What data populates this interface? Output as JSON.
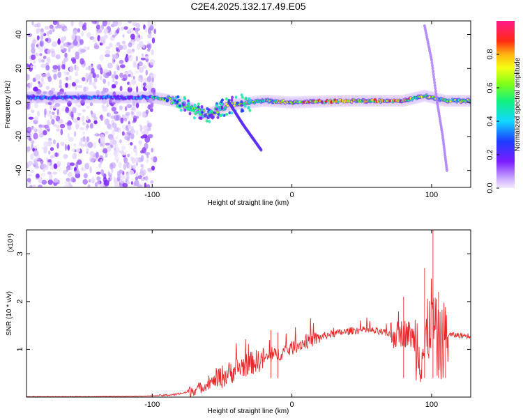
{
  "title": "C2E4.2025.132.17.49.E05",
  "colors": {
    "snr_line": "#e8292b",
    "ridge_low": "#7a1cff",
    "ridge_mid": "#19e0c8",
    "ridge_high": "#ff1a1a",
    "noise": "#b48cff"
  },
  "chart_data": [
    {
      "type": "heatmap",
      "xlabel": "Height of straight line (km)",
      "ylabel": "Frequency (Hz)",
      "xlim": [
        -190,
        128
      ],
      "ylim": [
        -50,
        48
      ],
      "xticks": [
        -100,
        0,
        100
      ],
      "yticks": [
        -40,
        -20,
        0,
        20,
        40
      ],
      "grid": false,
      "colorbar": {
        "label": "Normalized spectral amplitude",
        "range": [
          0,
          1
        ],
        "ticks": [
          0.0,
          0.2,
          0.4,
          0.6,
          0.8
        ],
        "colormap": "rainbow (violet-blue-cyan-green-yellow-orange-red-magenta)"
      },
      "features": [
        {
          "name": "broadband noise",
          "x_range": [
            -190,
            -98
          ],
          "y_range": [
            -50,
            48
          ]
        },
        {
          "name": "main ridge",
          "points": [
            [
              -190,
              3
            ],
            [
              -140,
              3
            ],
            [
              -100,
              3
            ],
            [
              -85,
              1
            ],
            [
              -75,
              -2
            ],
            [
              -65,
              -6
            ],
            [
              -60,
              -7
            ],
            [
              -50,
              -3
            ],
            [
              -40,
              -1
            ],
            [
              -20,
              1
            ],
            [
              0,
              0
            ],
            [
              40,
              1
            ],
            [
              80,
              1
            ],
            [
              95,
              4
            ],
            [
              100,
              3
            ],
            [
              110,
              1
            ],
            [
              128,
              1
            ]
          ]
        },
        {
          "name": "descending branch",
          "points": [
            [
              -45,
              0
            ],
            [
              -35,
              -13
            ],
            [
              -22,
              -28
            ]
          ]
        },
        {
          "name": "high branch",
          "points": [
            [
              95,
              45
            ],
            [
              100,
              25
            ],
            [
              104,
              0
            ],
            [
              108,
              -20
            ],
            [
              111,
              -40
            ]
          ]
        }
      ]
    },
    {
      "type": "line",
      "xlabel": "Height of straight line (km)",
      "ylabel": "SNR (10 * v/v)",
      "yscale_label": "(x10⁴)",
      "xlim": [
        -190,
        128
      ],
      "ylim": [
        0,
        3.5
      ],
      "xticks": [
        -100,
        0,
        100
      ],
      "yticks": [
        1,
        2,
        3
      ],
      "grid": false,
      "series": [
        {
          "x": [
            -190,
            -150,
            -110,
            -95,
            -85,
            -75,
            -65,
            -55,
            -45,
            -35,
            -25,
            -15,
            -5,
            5,
            15,
            25,
            35,
            45,
            55,
            65,
            75,
            80,
            85,
            90,
            95,
            100,
            105,
            110,
            115,
            128
          ],
          "y": [
            0.01,
            0.01,
            0.02,
            0.03,
            0.05,
            0.1,
            0.2,
            0.35,
            0.5,
            0.65,
            0.75,
            0.85,
            0.95,
            1.1,
            1.2,
            1.3,
            1.35,
            1.4,
            1.4,
            1.35,
            1.3,
            1.35,
            1.3,
            1.1,
            0.9,
            1.8,
            1.0,
            1.3,
            1.3,
            1.28
          ],
          "peaks": [
            [
              -15,
              1.4
            ],
            [
              -10,
              1.35
            ],
            [
              80,
              2.1
            ],
            [
              95,
              2.7
            ],
            [
              101,
              3.5
            ],
            [
              105,
              2.2
            ],
            [
              110,
              1.8
            ]
          ]
        }
      ]
    }
  ]
}
